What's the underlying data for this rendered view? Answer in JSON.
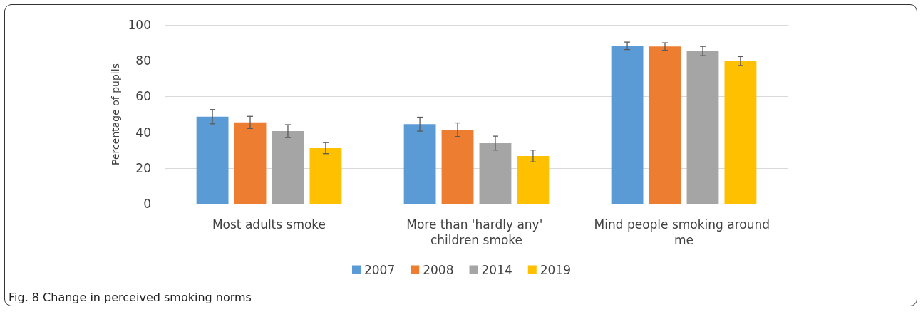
{
  "chart_data": {
    "type": "bar",
    "ylabel": "Percentage of pupils",
    "categories": [
      "Most adults smoke",
      "More than 'hardly any' children smoke",
      "Mind people smoking around me"
    ],
    "series": [
      {
        "name": "2007",
        "color": "#5b9bd5",
        "values": [
          48.7,
          44.5,
          88.3
        ],
        "errors": [
          4,
          3.9,
          2.1
        ]
      },
      {
        "name": "2008",
        "color": "#ed7d31",
        "values": [
          45.5,
          41.4,
          87.9
        ],
        "errors": [
          3.4,
          3.8,
          2.1
        ]
      },
      {
        "name": "2014",
        "color": "#a5a5a5",
        "values": [
          40.6,
          33.9,
          85.4
        ],
        "errors": [
          3.6,
          3.9,
          2.6
        ]
      },
      {
        "name": "2019",
        "color": "#ffc000",
        "values": [
          31.1,
          26.7,
          79.8
        ],
        "errors": [
          3.1,
          3.3,
          2.5
        ]
      }
    ],
    "ylim": [
      0,
      100
    ],
    "yticks": [
      0,
      20,
      40,
      60,
      80,
      100
    ],
    "grid": "y",
    "legend": "bottom",
    "annotations": [
      "Fig. 8 Change in perceived smoking norms"
    ]
  }
}
